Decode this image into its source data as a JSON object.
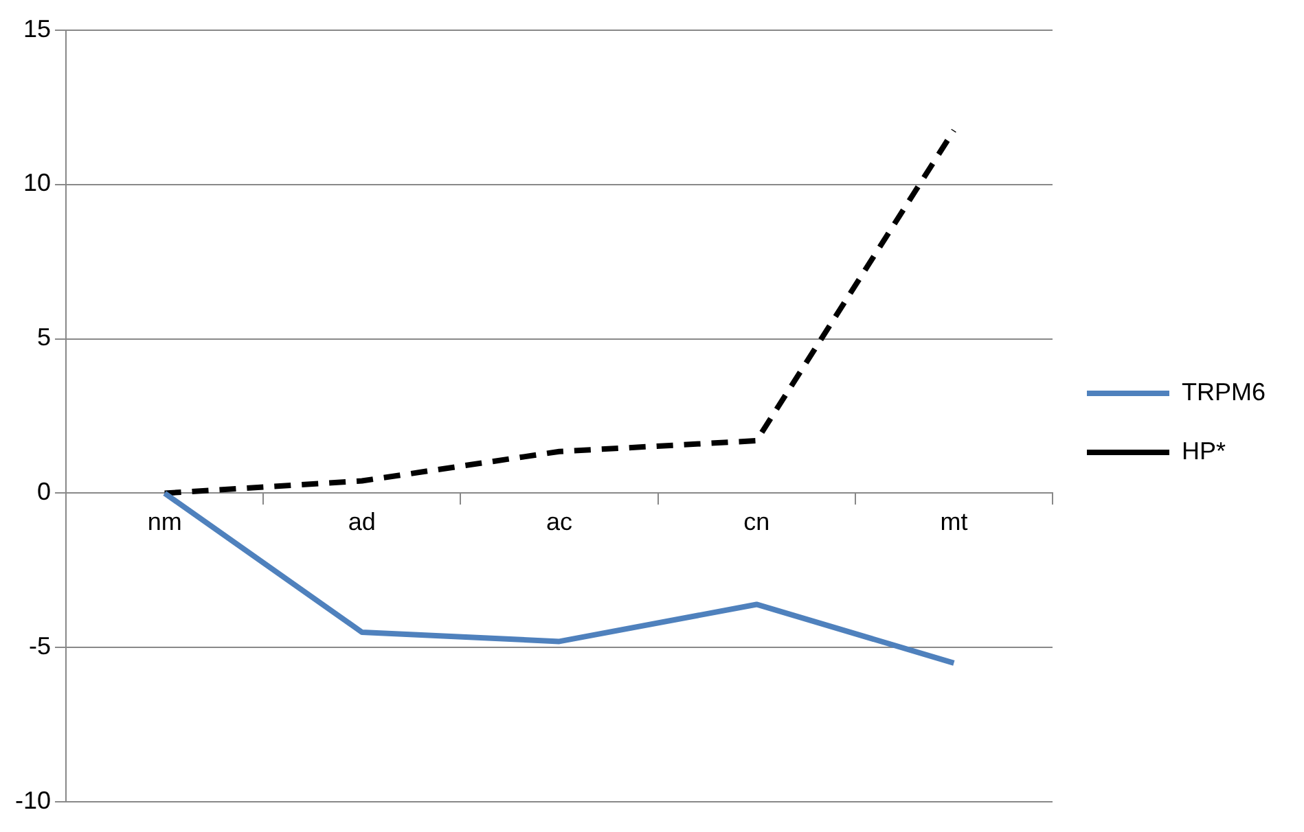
{
  "chart_data": {
    "type": "line",
    "categories": [
      "nm",
      "ad",
      "ac",
      "cn",
      "mt"
    ],
    "series": [
      {
        "name": "TRPM6",
        "color": "#4f81bd",
        "values": [
          0,
          -4.5,
          -4.8,
          -3.6,
          -5.5
        ],
        "line_style": "solid"
      },
      {
        "name": "HP*",
        "color": "#000000",
        "values": [
          0,
          0.4,
          1.35,
          1.7,
          11.75
        ],
        "line_style": "dashed"
      }
    ],
    "ylim": [
      -10,
      15
    ],
    "yticks": [
      -10,
      -5,
      0,
      5,
      10,
      15
    ],
    "grid": "y",
    "legend": "right",
    "marker": "none"
  }
}
